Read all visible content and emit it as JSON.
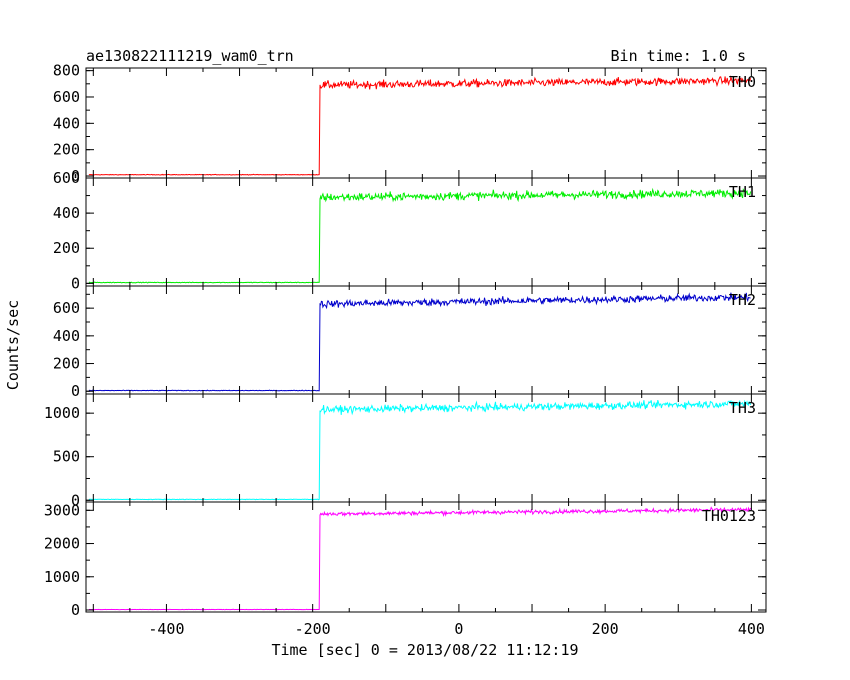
{
  "chart_data": {
    "type": "line",
    "title": "ae130822111219_wam0_trn",
    "subtitle": "Bin time: 1.0 s",
    "xlabel": "Time [sec] 0 = 2013/08/22 11:12:19",
    "ylabel": "Counts/sec",
    "xlim": [
      -510,
      420
    ],
    "xticks": [
      -400,
      -200,
      0,
      200,
      400
    ],
    "grid": false,
    "step_time": -190,
    "panels": [
      {
        "name": "TH0",
        "color": "#ff0000",
        "ylim": [
          -15,
          820
        ],
        "yticks": [
          0,
          200,
          400,
          600,
          800
        ],
        "pre_level": 10,
        "post_start": 690,
        "post_end": 725,
        "noise": 28
      },
      {
        "name": "TH1",
        "color": "#00ee00",
        "ylim": [
          -15,
          600
        ],
        "yticks": [
          0,
          200,
          400,
          600
        ],
        "pre_level": 5,
        "post_start": 490,
        "post_end": 515,
        "noise": 22
      },
      {
        "name": "TH2",
        "color": "#0000cc",
        "ylim": [
          -20,
          760
        ],
        "yticks": [
          0,
          200,
          400,
          600
        ],
        "pre_level": 5,
        "post_start": 630,
        "post_end": 680,
        "noise": 25
      },
      {
        "name": "TH3",
        "color": "#00ffff",
        "ylim": [
          -20,
          1220
        ],
        "yticks": [
          0,
          500,
          1000
        ],
        "pre_level": 10,
        "post_start": 1040,
        "post_end": 1110,
        "noise": 40
      },
      {
        "name": "TH0123",
        "color": "#ff00ff",
        "ylim": [
          -60,
          3250
        ],
        "yticks": [
          0,
          1000,
          2000,
          3000
        ],
        "pre_level": 15,
        "post_start": 2890,
        "post_end": 3020,
        "noise": 55
      }
    ]
  }
}
